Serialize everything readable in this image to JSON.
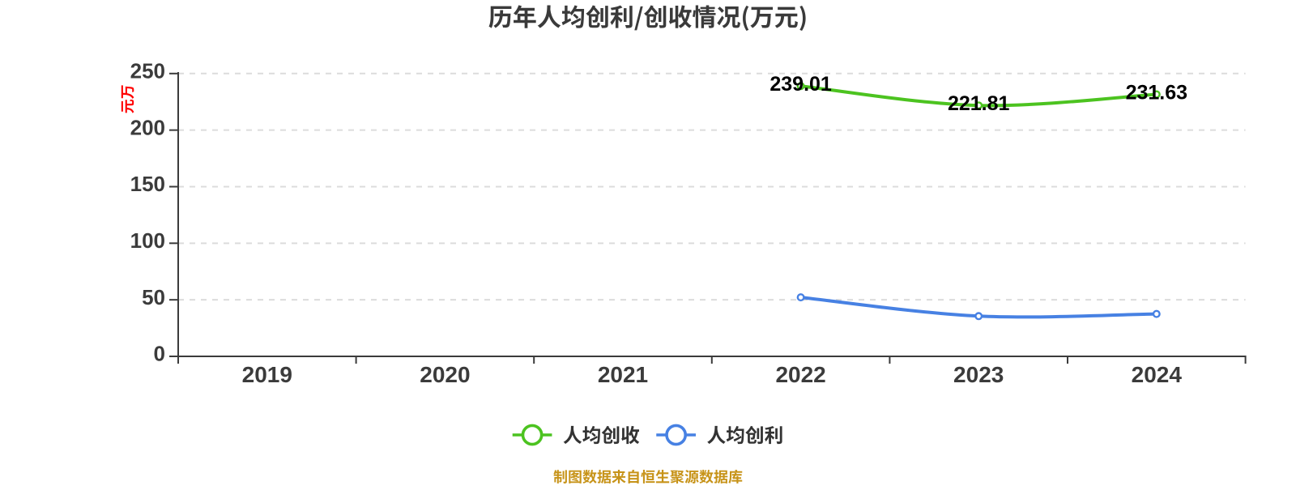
{
  "page": {
    "background": "#FFFFFF"
  },
  "chart_data": {
    "type": "line",
    "title": "历年人均创利/创收情况(万元)",
    "y_axis_name": "万元",
    "categories": [
      "2019",
      "2020",
      "2021",
      "2022",
      "2023",
      "2024"
    ],
    "series": [
      {
        "name": "人均创收",
        "color": "#4CC320",
        "points": [
          {
            "x": "2022",
            "y": 239.01
          },
          {
            "x": "2023",
            "y": 221.81
          },
          {
            "x": "2024",
            "y": 231.63
          }
        ],
        "data_labels": [
          "239.01",
          "221.81",
          "231.63"
        ],
        "show_labels": true
      },
      {
        "name": "人均创利",
        "color": "#4781E3",
        "points": [
          {
            "x": "2022",
            "y": 52.2
          },
          {
            "x": "2023",
            "y": 35.6
          },
          {
            "x": "2024",
            "y": 37.5
          }
        ],
        "data_labels": [],
        "show_labels": false
      }
    ],
    "ylim": [
      0,
      250
    ],
    "y_ticks": [
      0,
      50,
      100,
      150,
      200,
      250
    ],
    "grid": "horizontal-dashed",
    "legend_position": "bottom",
    "legend": [
      "人均创收",
      "人均创利"
    ]
  },
  "footer": {
    "text": "制图数据来自恒生聚源数据库"
  },
  "colors": {
    "title": "#3A3A3A",
    "axis": "#3B3B3B",
    "tick_label": "#3B3B3B",
    "gridline": "#DCDCDC",
    "data_label": "#000000",
    "legend_label": "#333333",
    "y_axis_name": "#FF0000",
    "footer": "#C79318"
  }
}
